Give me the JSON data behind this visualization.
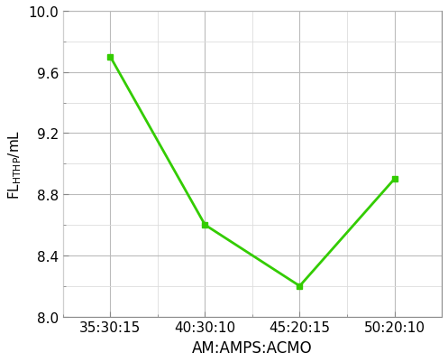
{
  "x_labels": [
    "35:30:15",
    "40:30:10",
    "45:20:15",
    "50:20:10"
  ],
  "x_values": [
    0,
    1,
    2,
    3
  ],
  "y_values": [
    9.7,
    8.6,
    8.2,
    8.9
  ],
  "line_color": "#33cc00",
  "marker_style": "s",
  "marker_size": 5,
  "linewidth": 2.0,
  "xlabel": "AM:AMPS:ACMO",
  "ylim": [
    8.0,
    10.0
  ],
  "yticks": [
    8.0,
    8.4,
    8.8,
    9.2,
    9.6,
    10.0
  ],
  "ytick_labels": [
    "8.0",
    "8.4",
    "8.8",
    "9.2",
    "9.6",
    "10.0"
  ],
  "minor_yticks": [
    8.2,
    8.6,
    9.0,
    9.4,
    9.8
  ],
  "grid_color": "#bbbbbb",
  "minor_grid_color": "#dddddd",
  "background_color": "#ffffff",
  "xlabel_fontsize": 12,
  "ylabel_fontsize": 11,
  "tick_fontsize": 11,
  "spine_color": "#888888"
}
